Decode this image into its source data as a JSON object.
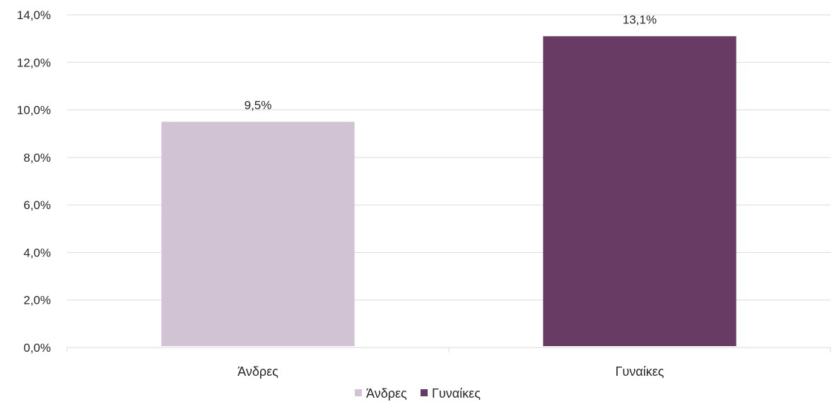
{
  "chart_data": {
    "type": "bar",
    "title": "",
    "xlabel": "",
    "ylabel": "",
    "categories": [
      "Άνδρες",
      "Γυναίκες"
    ],
    "values": [
      9.5,
      13.1
    ],
    "data_labels": [
      "9,5%",
      "13,1%"
    ],
    "colors": [
      "#d1c3d3",
      "#683b64"
    ],
    "ylim": [
      0,
      14
    ],
    "y_ticks": [
      0,
      2,
      4,
      6,
      8,
      10,
      12,
      14
    ],
    "y_tick_labels": [
      "0,0%",
      "2,0%",
      "4,0%",
      "6,0%",
      "8,0%",
      "10,0%",
      "12,0%",
      "14,0%"
    ],
    "grid": true,
    "legend": {
      "position": "bottom",
      "entries": [
        {
          "label": "Άνδρες",
          "color": "#d1c3d3"
        },
        {
          "label": "Γυναίκες",
          "color": "#683b64"
        }
      ]
    }
  }
}
